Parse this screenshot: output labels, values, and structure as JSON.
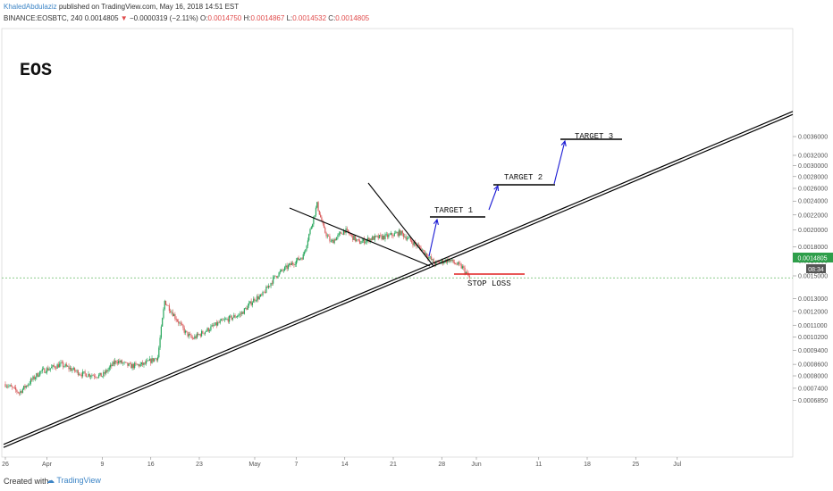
{
  "header": {
    "author": "KhaledAbdulaziz",
    "published": " published on TradingView.com, May 16, 2018 14:51 EST",
    "symbol": "BINANCE:EOSBTC, 240",
    "last": "0.0014805",
    "arrow": "▼",
    "change": "−0.0000319 (−2.11%)",
    "open_label": "O:",
    "open": "0.0014750",
    "high_label": "H:",
    "high": "0.0014867",
    "low_label": "L:",
    "low": "0.0014532",
    "close_label": "C:",
    "close": "0.0014805"
  },
  "footer": {
    "created_with": "Created with",
    "brand": "TradingView"
  },
  "colors": {
    "up": "#26a65b",
    "down": "#d95c5c",
    "trend": "#000000",
    "target_arrow": "#1a1ad4",
    "stop_loss": "#e02020",
    "price_line": "#7cc47c",
    "price_badge": "#2e9e4a"
  },
  "chart_data": {
    "type": "candlestick",
    "title": "EOS",
    "yscale": "log",
    "ylim": [
      0.00064,
      0.0036
    ],
    "y_ticks": [
      "0.0036000",
      "0.0032000",
      "0.0030000",
      "0.0028000",
      "0.0026000",
      "0.0024000",
      "0.0022000",
      "0.0020000",
      "0.0018000",
      "0.0016500",
      "0.0015000",
      "0.0013000",
      "0.0012000",
      "0.0011000",
      "0.0010200",
      "0.0009400",
      "0.0008600",
      "0.0008000",
      "0.0007400",
      "0.0006850"
    ],
    "x_ticks": [
      "26",
      "Apr",
      "9",
      "16",
      "23",
      "May",
      "7",
      "14",
      "21",
      "28",
      "Jun",
      "11",
      "18",
      "25",
      "Jul"
    ],
    "current_price": "0.0014805",
    "countdown": "08:34",
    "close_path": [
      {
        "day": 0,
        "close": 0.00076
      },
      {
        "day": 2,
        "close": 0.00072
      },
      {
        "day": 5,
        "close": 0.00082
      },
      {
        "day": 8,
        "close": 0.00086
      },
      {
        "day": 11,
        "close": 0.00081
      },
      {
        "day": 14,
        "close": 0.0008
      },
      {
        "day": 16,
        "close": 0.00088
      },
      {
        "day": 18,
        "close": 0.00085
      },
      {
        "day": 20,
        "close": 0.00086
      },
      {
        "day": 22,
        "close": 0.0009
      },
      {
        "day": 23,
        "close": 0.00128
      },
      {
        "day": 26,
        "close": 0.00105
      },
      {
        "day": 27,
        "close": 0.00101
      },
      {
        "day": 31,
        "close": 0.00112
      },
      {
        "day": 34,
        "close": 0.00118
      },
      {
        "day": 36,
        "close": 0.0013
      },
      {
        "day": 37,
        "close": 0.00132
      },
      {
        "day": 39,
        "close": 0.0015
      },
      {
        "day": 41,
        "close": 0.0016
      },
      {
        "day": 43,
        "close": 0.0017
      },
      {
        "day": 44,
        "close": 0.002
      },
      {
        "day": 45,
        "close": 0.00235
      },
      {
        "day": 46,
        "close": 0.002
      },
      {
        "day": 47,
        "close": 0.00185
      },
      {
        "day": 49,
        "close": 0.002
      },
      {
        "day": 51,
        "close": 0.00185
      },
      {
        "day": 53,
        "close": 0.0019
      },
      {
        "day": 55,
        "close": 0.00192
      },
      {
        "day": 57,
        "close": 0.00197
      },
      {
        "day": 60,
        "close": 0.00178
      },
      {
        "day": 62,
        "close": 0.00162
      },
      {
        "day": 64,
        "close": 0.00166
      },
      {
        "day": 66,
        "close": 0.00158
      },
      {
        "day": 67,
        "close": 0.00148
      }
    ],
    "annotations": {
      "targets": [
        "TARGET 1",
        "TARGET 2",
        "TARGET 3"
      ],
      "stop_loss": "STOP LOSS"
    }
  }
}
